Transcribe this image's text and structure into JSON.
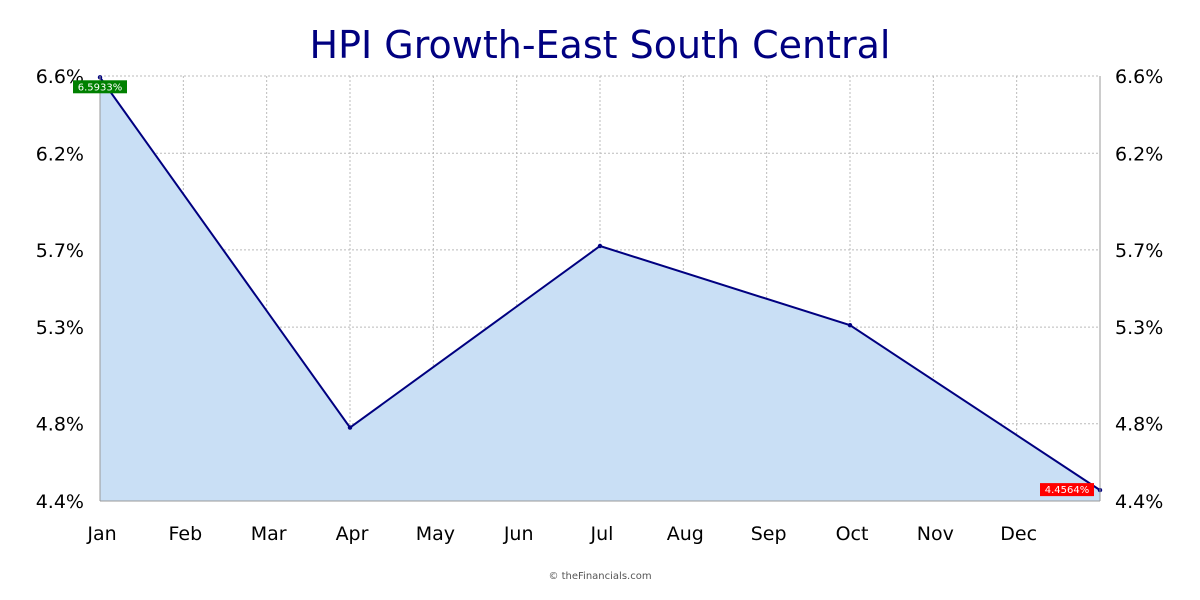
{
  "chart_data": {
    "type": "area",
    "title": "HPI Growth-East South Central",
    "xlabel": "",
    "ylabel": "",
    "categories": [
      "Jan",
      "Feb",
      "Mar",
      "Apr",
      "May",
      "Jun",
      "Jul",
      "Aug",
      "Sep",
      "Oct",
      "Nov",
      "Dec"
    ],
    "x": [
      0,
      3,
      6,
      9,
      12
    ],
    "values": [
      6.5933,
      4.78,
      5.72,
      5.31,
      4.4564
    ],
    "y_ticks": [
      "4.4%",
      "4.8%",
      "5.3%",
      "5.7%",
      "6.2%",
      "6.6%"
    ],
    "ylim": [
      4.4,
      6.6
    ],
    "grid": true,
    "dual_y_axis": true,
    "first_label": "6.5933%",
    "last_label": "4.4564%",
    "colors": {
      "line": "#000080",
      "fill": "#c9dff5",
      "first_marker": "#008000",
      "last_marker": "#ff0000",
      "grid": "#bbbbbb"
    }
  },
  "credit": "© theFinancials.com"
}
